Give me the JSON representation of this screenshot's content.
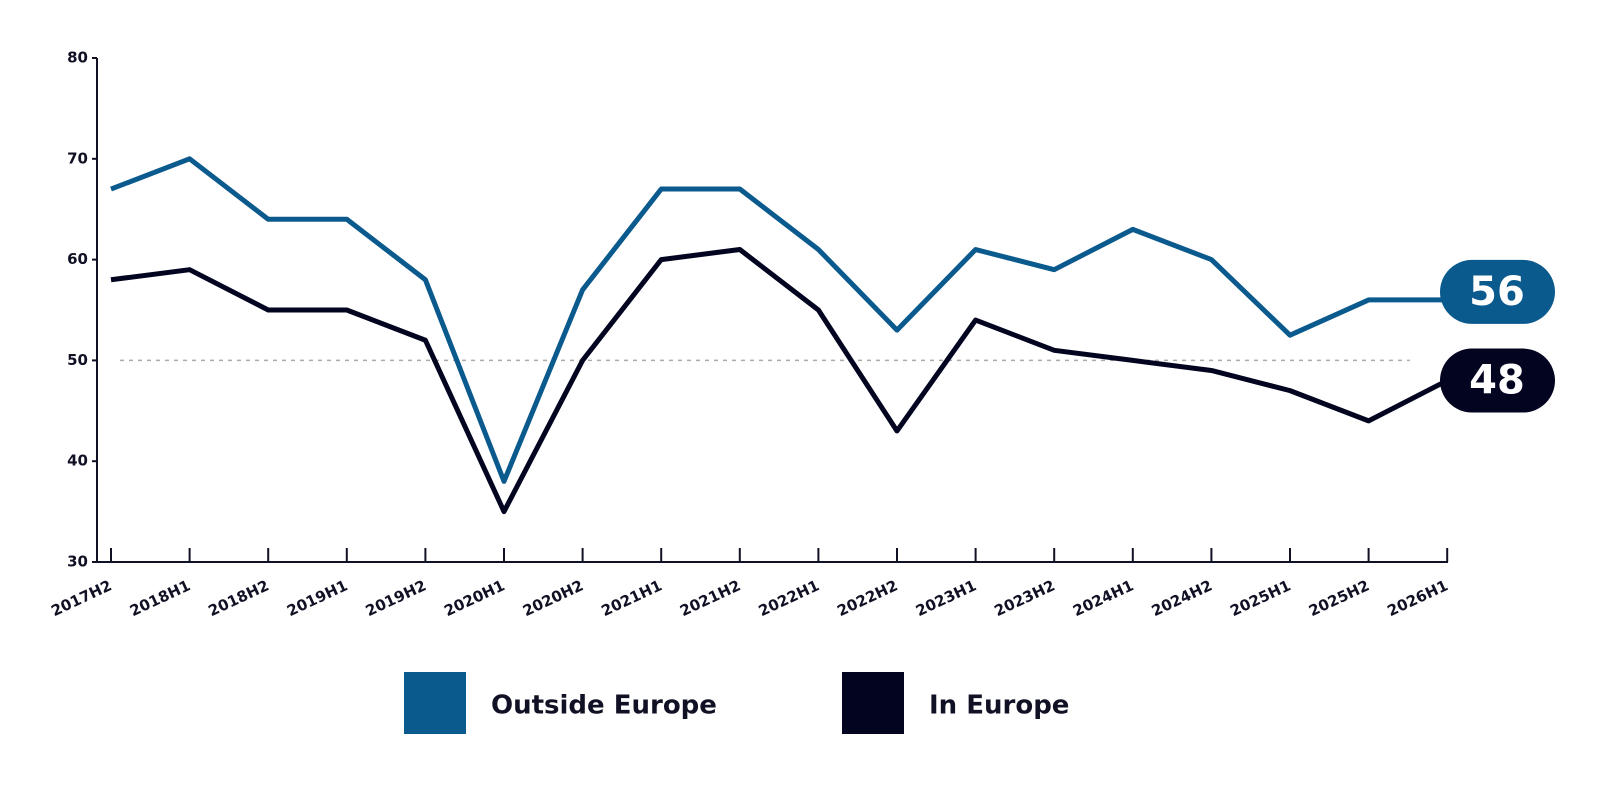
{
  "chart_data": {
    "type": "line",
    "categories": [
      "2017H2",
      "2018H1",
      "2018H2",
      "2019H1",
      "2019H2",
      "2020H1",
      "2020H2",
      "2021H1",
      "2021H2",
      "2022H1",
      "2022H2",
      "2023H1",
      "2023H2",
      "2024H1",
      "2024H2",
      "2025H1",
      "2025H2",
      "2026H1"
    ],
    "series": [
      {
        "name": "Outside Europe",
        "color": "#0b5a8e",
        "values": [
          67,
          70,
          64,
          64,
          58,
          38,
          57,
          67,
          67,
          61,
          53,
          61,
          59,
          63,
          60,
          52.5,
          56,
          56
        ]
      },
      {
        "name": "In Europe",
        "color": "#020420",
        "values": [
          58,
          59,
          55,
          55,
          52,
          35,
          50,
          60,
          61,
          55,
          43,
          54,
          51,
          50,
          49,
          47,
          44,
          48
        ]
      }
    ],
    "ylim": [
      30,
      80
    ],
    "yticks": [
      30,
      40,
      50,
      60,
      70,
      80
    ],
    "reference_line": 50,
    "grid": false
  }
}
